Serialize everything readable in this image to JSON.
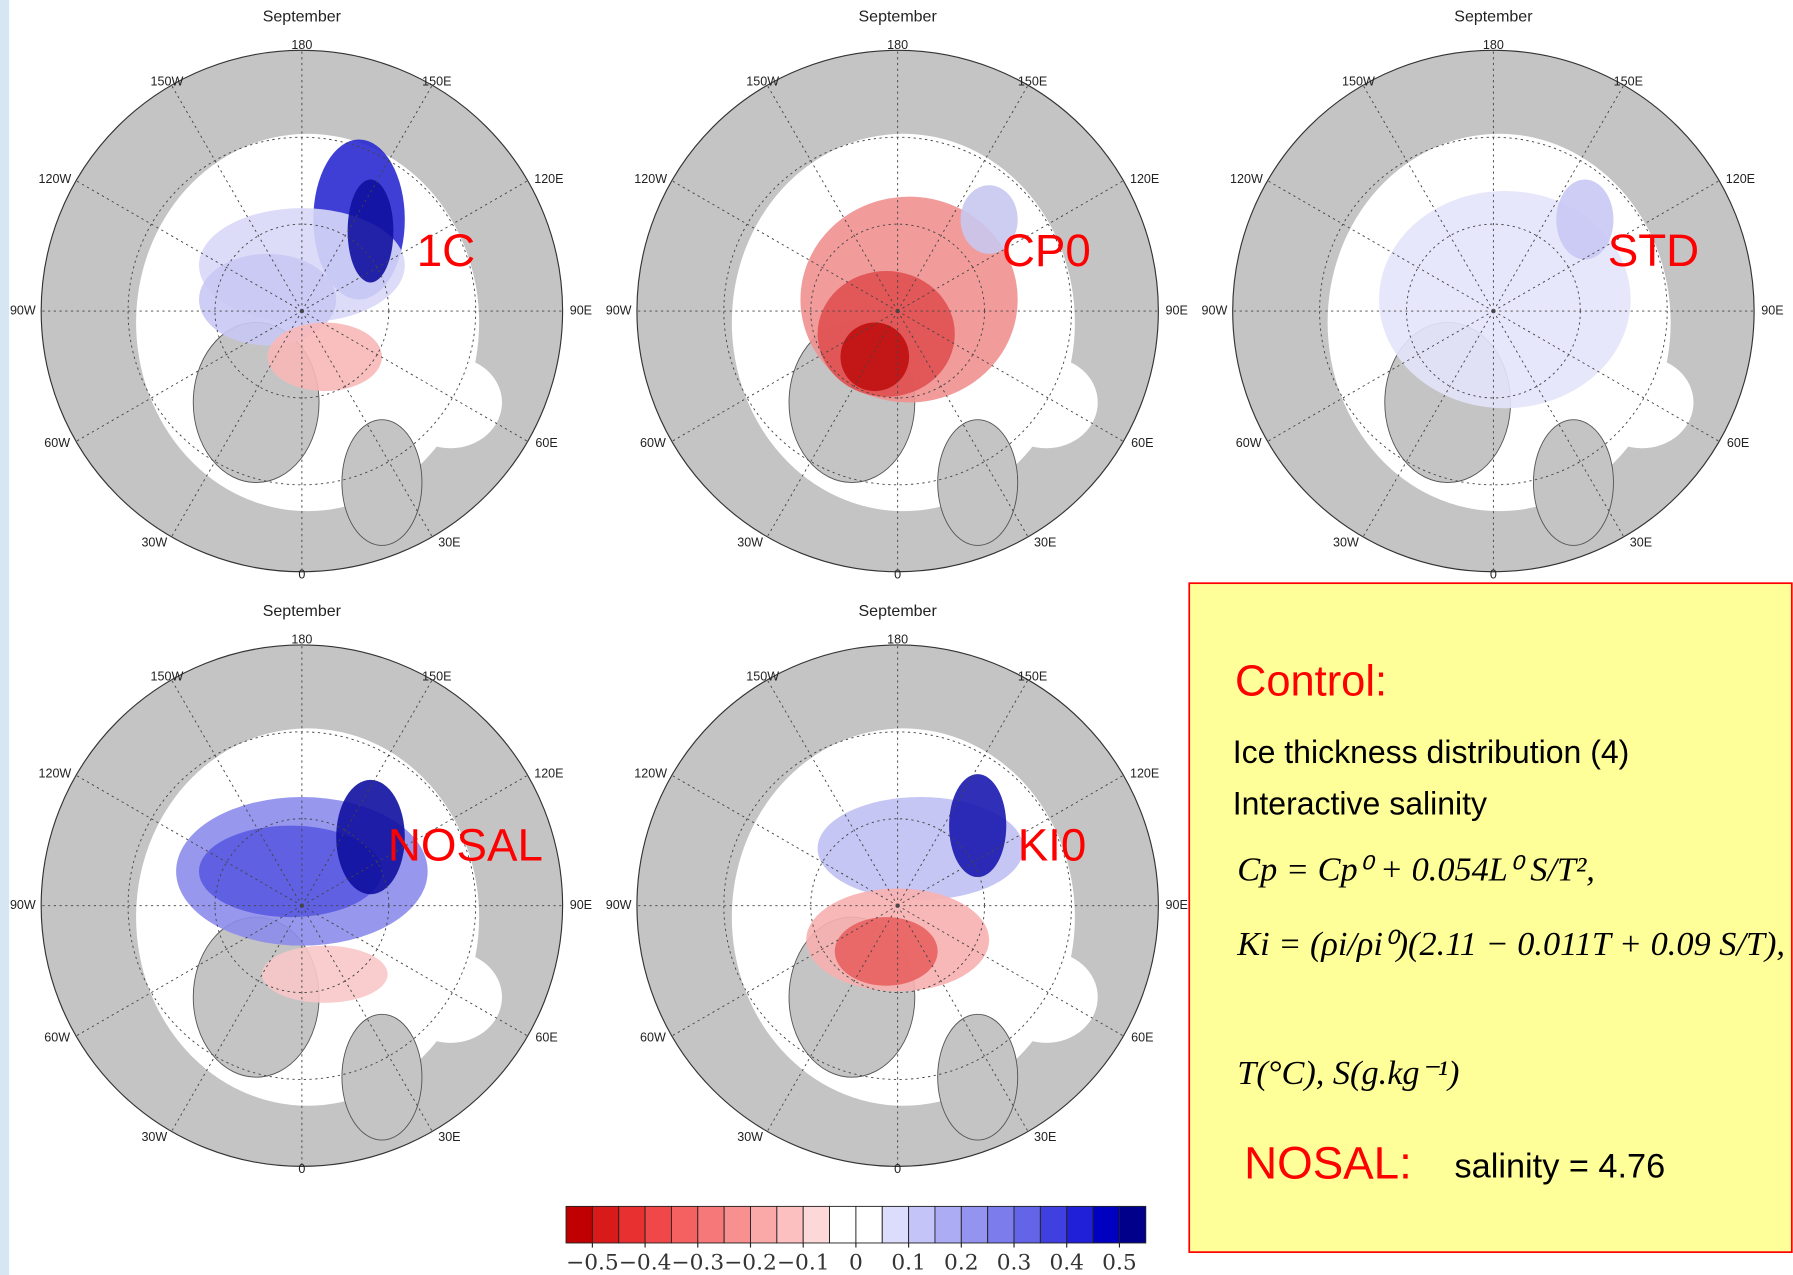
{
  "maps": [
    {
      "title": "September",
      "label": "1C"
    },
    {
      "title": "September",
      "label": "CP0"
    },
    {
      "title": "September",
      "label": "STD"
    },
    {
      "title": "September",
      "label": "NOSAL"
    },
    {
      "title": "September",
      "label": "KI0"
    }
  ],
  "longitude_labels": [
    "180",
    "150W",
    "150E",
    "120W",
    "120E",
    "90W",
    "90E",
    "60W",
    "60E",
    "30W",
    "30E",
    "0"
  ],
  "colorbar": {
    "lim": [
      -0.55,
      0.55
    ],
    "colors": [
      "#c00000",
      "#d91a1a",
      "#e83030",
      "#f04848",
      "#f56060",
      "#f77878",
      "#f89090",
      "#faa8a8",
      "#fcc0c0",
      "#fdd8d8",
      "#ffffff",
      "#ffffff",
      "#dcdcfc",
      "#c4c4f8",
      "#acacf4",
      "#9494f0",
      "#7c7cec",
      "#6464e8",
      "#4040e0",
      "#2020d8",
      "#0000c0",
      "#00008a"
    ],
    "ticks": [
      {
        "value": -0.5,
        "label": "−0.5"
      },
      {
        "value": -0.4,
        "label": "−0.4"
      },
      {
        "value": -0.3,
        "label": "−0.3"
      },
      {
        "value": -0.2,
        "label": "−0.2"
      },
      {
        "value": -0.1,
        "label": "−0.1"
      },
      0,
      0.1,
      0.2,
      0.3,
      0.4,
      0.5
    ]
  },
  "textbox": {
    "heading": "Control:",
    "lines": [
      "Ice thickness distribution (4)",
      "Interactive salinity"
    ],
    "formulas": [
      "Cp = Cp⁰ + 0.054L⁰ S/T²,",
      "Ki = (ρi/ρi⁰)(2.11 − 0.011T + 0.09 S/T),",
      "T(°C), S(g.kg⁻¹)"
    ],
    "nosal_label": "NOSAL:",
    "nosal_text": "salinity = 4.76"
  }
}
